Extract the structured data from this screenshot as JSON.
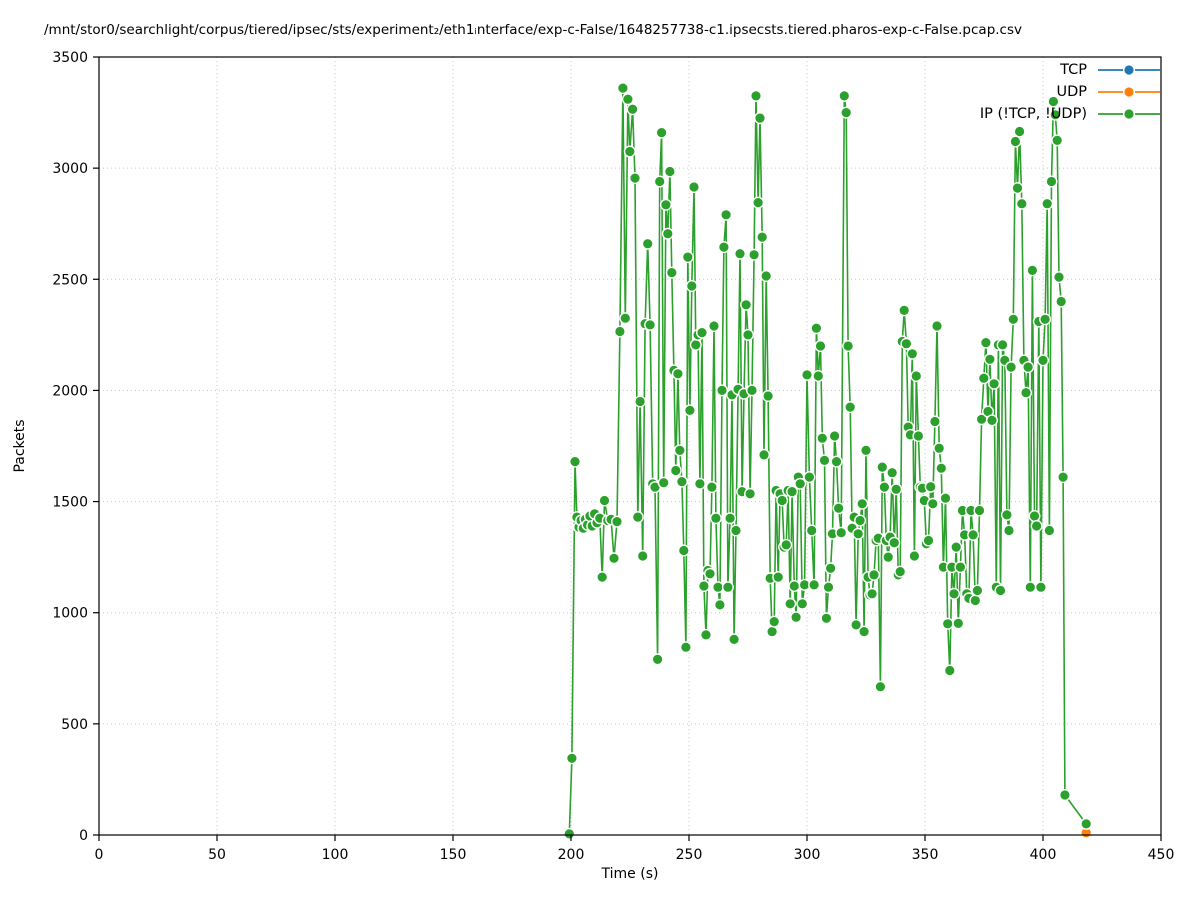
{
  "title": "/mnt/stor0/searchlight/corpus/tiered/ipsec/sts/experiment₂/eth1ᵢnterface/exp-c-False/1648257738-c1.ipsecsts.tiered.pharos-exp-c-False.pcap.csv",
  "axes": {
    "xlabel": "Time (s)",
    "ylabel": "Packets"
  },
  "chart_data": {
    "type": "line",
    "xlabel": "Time (s)",
    "ylabel": "Packets",
    "xlim": [
      0,
      450
    ],
    "ylim": [
      0,
      3500
    ],
    "xticks": [
      0,
      50,
      100,
      150,
      200,
      250,
      300,
      350,
      400,
      450
    ],
    "yticks": [
      0,
      500,
      1000,
      1500,
      2000,
      2500,
      3000,
      3500
    ],
    "grid": true,
    "grid_style": "dotted",
    "legend_position": "top-right",
    "marker": "circle-white-edge",
    "series": [
      {
        "name": "TCP",
        "color": "#1f77b4",
        "points": []
      },
      {
        "name": "UDP",
        "color": "#ff7f0e",
        "points": [
          [
            418.3,
            10
          ]
        ]
      },
      {
        "name": "IP (!TCP, !UDP)",
        "color": "#2ca02c",
        "points": [
          [
            199.3,
            5
          ],
          [
            200.4,
            345
          ],
          [
            201.7,
            1680
          ],
          [
            202.5,
            1430
          ],
          [
            203.4,
            1385
          ],
          [
            204.3,
            1415
          ],
          [
            205.2,
            1380
          ],
          [
            206.1,
            1420
          ],
          [
            207,
            1395
          ],
          [
            208,
            1435
          ],
          [
            209,
            1390
          ],
          [
            210,
            1445
          ],
          [
            211,
            1405
          ],
          [
            212.2,
            1425
          ],
          [
            213.2,
            1160
          ],
          [
            214.2,
            1505
          ],
          [
            215.6,
            1415
          ],
          [
            217,
            1420
          ],
          [
            218.2,
            1245
          ],
          [
            219.5,
            1410
          ],
          [
            220.7,
            2265
          ],
          [
            222,
            3360
          ],
          [
            223,
            2325
          ],
          [
            224.1,
            3310
          ],
          [
            224.9,
            3075
          ],
          [
            226.1,
            3265
          ],
          [
            227.1,
            2955
          ],
          [
            228.3,
            1430
          ],
          [
            229.3,
            1950
          ],
          [
            230.4,
            1255
          ],
          [
            231.4,
            2300
          ],
          [
            232.5,
            2660
          ],
          [
            233.5,
            2295
          ],
          [
            234.6,
            1580
          ],
          [
            235.6,
            1565
          ],
          [
            236.7,
            790
          ],
          [
            237.6,
            2940
          ],
          [
            238.4,
            3160
          ],
          [
            239.3,
            1585
          ],
          [
            240.2,
            2835
          ],
          [
            241,
            2705
          ],
          [
            241.9,
            2985
          ],
          [
            242.7,
            2530
          ],
          [
            243.6,
            2090
          ],
          [
            244.4,
            1640
          ],
          [
            245.3,
            2075
          ],
          [
            246.1,
            1730
          ],
          [
            247,
            1590
          ],
          [
            247.8,
            1280
          ],
          [
            248.7,
            845
          ],
          [
            249.5,
            2600
          ],
          [
            250.4,
            1910
          ],
          [
            251.2,
            2470
          ],
          [
            252.1,
            2915
          ],
          [
            252.9,
            2205
          ],
          [
            253.8,
            2250
          ],
          [
            254.6,
            1580
          ],
          [
            255.5,
            2260
          ],
          [
            256.3,
            1120
          ],
          [
            257.2,
            900
          ],
          [
            258,
            1190
          ],
          [
            258.9,
            1175
          ],
          [
            259.7,
            1565
          ],
          [
            260.6,
            2290
          ],
          [
            261.4,
            1425
          ],
          [
            262.3,
            1115
          ],
          [
            263.1,
            1035
          ],
          [
            264,
            2000
          ],
          [
            264.8,
            2645
          ],
          [
            265.7,
            2790
          ],
          [
            266.5,
            1115
          ],
          [
            267.4,
            1425
          ],
          [
            268.2,
            1980
          ],
          [
            269.1,
            880
          ],
          [
            269.9,
            1370
          ],
          [
            270.8,
            2005
          ],
          [
            271.6,
            2615
          ],
          [
            272.5,
            1545
          ],
          [
            273.3,
            1985
          ],
          [
            274.2,
            2385
          ],
          [
            275,
            2250
          ],
          [
            275.9,
            1535
          ],
          [
            276.7,
            2000
          ],
          [
            277.6,
            2610
          ],
          [
            278.4,
            3325
          ],
          [
            279.3,
            2845
          ],
          [
            280.1,
            3225
          ],
          [
            281,
            2690
          ],
          [
            281.8,
            1710
          ],
          [
            282.7,
            2515
          ],
          [
            283.5,
            1975
          ],
          [
            284.4,
            1155
          ],
          [
            285.2,
            915
          ],
          [
            286.1,
            960
          ],
          [
            286.9,
            1550
          ],
          [
            287.8,
            1160
          ],
          [
            288.6,
            1535
          ],
          [
            289.5,
            1505
          ],
          [
            290.3,
            1295
          ],
          [
            291.2,
            1305
          ],
          [
            292,
            1550
          ],
          [
            292.9,
            1040
          ],
          [
            293.7,
            1545
          ],
          [
            294.6,
            1120
          ],
          [
            295.4,
            980
          ],
          [
            296.3,
            1610
          ],
          [
            297.1,
            1580
          ],
          [
            298,
            1040
          ],
          [
            299,
            1125
          ],
          [
            300,
            2070
          ],
          [
            301,
            1610
          ],
          [
            302,
            1370
          ],
          [
            303,
            1125
          ],
          [
            304,
            2280
          ],
          [
            304.8,
            2065
          ],
          [
            305.7,
            2200
          ],
          [
            306.5,
            1785
          ],
          [
            307.4,
            1685
          ],
          [
            308.2,
            975
          ],
          [
            309.1,
            1115
          ],
          [
            310,
            1200
          ],
          [
            310.8,
            1355
          ],
          [
            311.7,
            1795
          ],
          [
            312.5,
            1680
          ],
          [
            313.4,
            1470
          ],
          [
            314.5,
            1360
          ],
          [
            315.8,
            3325
          ],
          [
            316.6,
            3250
          ],
          [
            317.4,
            2200
          ],
          [
            318.3,
            1925
          ],
          [
            319.1,
            1380
          ],
          [
            320,
            1430
          ],
          [
            320.8,
            945
          ],
          [
            321.7,
            1355
          ],
          [
            322.5,
            1415
          ],
          [
            323.4,
            1490
          ],
          [
            324.2,
            915
          ],
          [
            325,
            1730
          ],
          [
            325.9,
            1160
          ],
          [
            326.7,
            1080
          ],
          [
            327.6,
            1085
          ],
          [
            328.4,
            1170
          ],
          [
            329.3,
            1325
          ],
          [
            330.2,
            1335
          ],
          [
            331.1,
            667
          ],
          [
            331.9,
            1655
          ],
          [
            332.8,
            1565
          ],
          [
            333.6,
            1325
          ],
          [
            334.4,
            1250
          ],
          [
            335.2,
            1340
          ],
          [
            336.1,
            1630
          ],
          [
            337,
            1315
          ],
          [
            337.8,
            1555
          ],
          [
            338.7,
            1170
          ],
          [
            339.5,
            1185
          ],
          [
            340.4,
            2220
          ],
          [
            341.2,
            2360
          ],
          [
            342.1,
            2210
          ],
          [
            342.9,
            1835
          ],
          [
            343.8,
            1800
          ],
          [
            344.6,
            2165
          ],
          [
            345.5,
            1255
          ],
          [
            346.3,
            2065
          ],
          [
            347.2,
            1795
          ],
          [
            348,
            1565
          ],
          [
            348.9,
            1560
          ],
          [
            349.7,
            1505
          ],
          [
            350.6,
            1310
          ],
          [
            351.5,
            1325
          ],
          [
            352.4,
            1567
          ],
          [
            353.3,
            1490
          ],
          [
            354.2,
            1860
          ],
          [
            355.1,
            2290
          ],
          [
            356,
            1740
          ],
          [
            356.9,
            1650
          ],
          [
            357.8,
            1205
          ],
          [
            358.7,
            1515
          ],
          [
            359.6,
            950
          ],
          [
            360.5,
            740
          ],
          [
            361.4,
            1205
          ],
          [
            362.3,
            1085
          ],
          [
            363.2,
            1295
          ],
          [
            364.1,
            952
          ],
          [
            365,
            1205
          ],
          [
            365.9,
            1460
          ],
          [
            366.8,
            1350
          ],
          [
            367.7,
            1085
          ],
          [
            368.6,
            1065
          ],
          [
            369.5,
            1460
          ],
          [
            370.4,
            1350
          ],
          [
            371.3,
            1055
          ],
          [
            372.2,
            1100
          ],
          [
            373.1,
            1460
          ],
          [
            374,
            1870
          ],
          [
            374.9,
            2055
          ],
          [
            375.8,
            2215
          ],
          [
            376.7,
            1905
          ],
          [
            377.5,
            2140
          ],
          [
            378.4,
            1865
          ],
          [
            379.3,
            2030
          ],
          [
            380.2,
            1115
          ],
          [
            381.1,
            2205
          ],
          [
            382,
            1100
          ],
          [
            382.9,
            2205
          ],
          [
            383.8,
            2135
          ],
          [
            384.7,
            1440
          ],
          [
            385.6,
            1370
          ],
          [
            386.5,
            2105
          ],
          [
            387.4,
            2320
          ],
          [
            388.3,
            3120
          ],
          [
            389.2,
            2910
          ],
          [
            390.1,
            3165
          ],
          [
            391,
            2840
          ],
          [
            391.9,
            2135
          ],
          [
            392.8,
            1990
          ],
          [
            393.7,
            2105
          ],
          [
            394.6,
            1115
          ],
          [
            395.5,
            2540
          ],
          [
            396.4,
            1435
          ],
          [
            397.3,
            1390
          ],
          [
            398.2,
            2310
          ],
          [
            399.1,
            1115
          ],
          [
            400,
            2135
          ],
          [
            400.9,
            2320
          ],
          [
            401.8,
            2840
          ],
          [
            402.7,
            1370
          ],
          [
            403.6,
            2940
          ],
          [
            404.4,
            3300
          ],
          [
            405.2,
            3240
          ],
          [
            406,
            3125
          ],
          [
            406.8,
            2510
          ],
          [
            407.7,
            2400
          ],
          [
            408.5,
            1610
          ],
          [
            409.3,
            180
          ],
          [
            418.3,
            50
          ]
        ]
      }
    ]
  },
  "colors": {
    "grid": "#c8c8c8",
    "axis": "#000000",
    "background": "#ffffff"
  }
}
